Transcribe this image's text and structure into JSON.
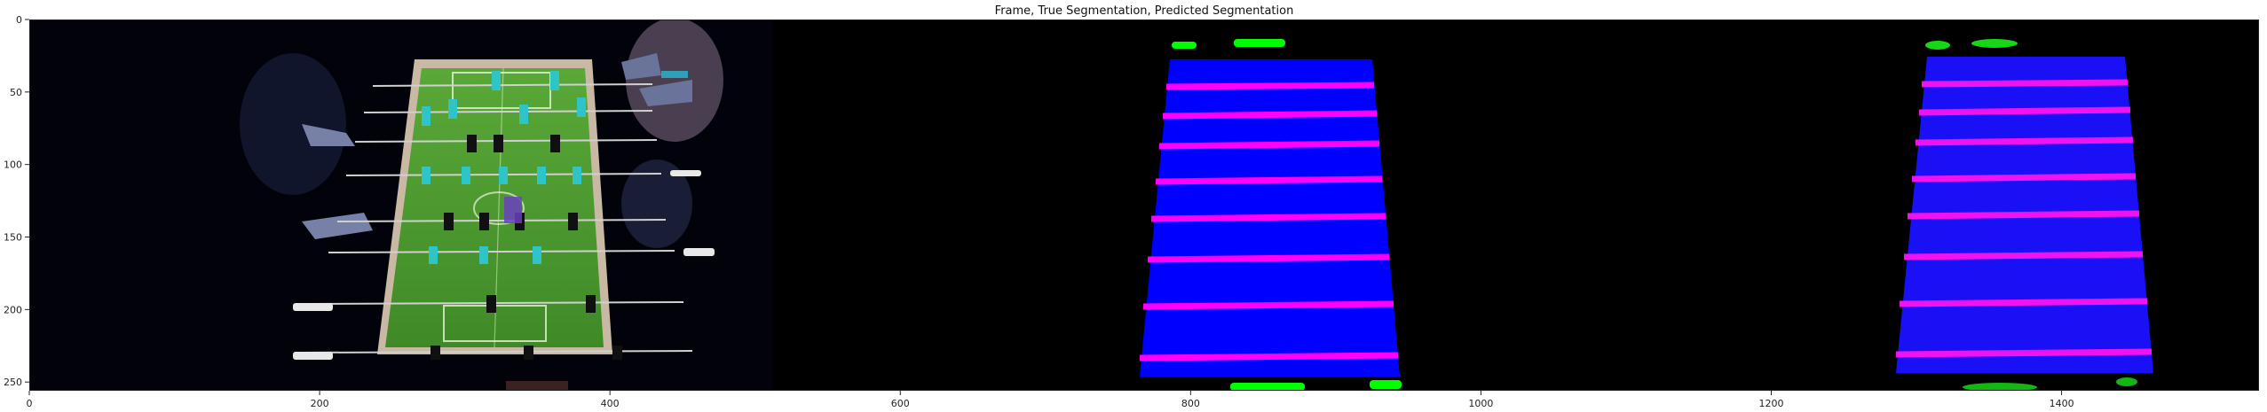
{
  "chart_data": {
    "type": "image",
    "title": "Frame, True Segmentation, Predicted Segmentation",
    "xlim": [
      0,
      1536
    ],
    "ylim": [
      256,
      0
    ],
    "x_ticks": [
      0,
      200,
      400,
      600,
      800,
      1000,
      1200,
      1400
    ],
    "y_ticks": [
      0,
      50,
      100,
      150,
      200,
      250
    ],
    "panels": [
      {
        "name": "frame",
        "x_range": [
          0,
          512
        ]
      },
      {
        "name": "true-segmentation",
        "x_range": [
          512,
          1024
        ]
      },
      {
        "name": "predicted-segmentation",
        "x_range": [
          1024,
          1536
        ]
      }
    ],
    "class_colors": {
      "background": "#000000",
      "table": "#0000ff",
      "rods": "#ff00ff",
      "other": "#00ff00"
    }
  }
}
